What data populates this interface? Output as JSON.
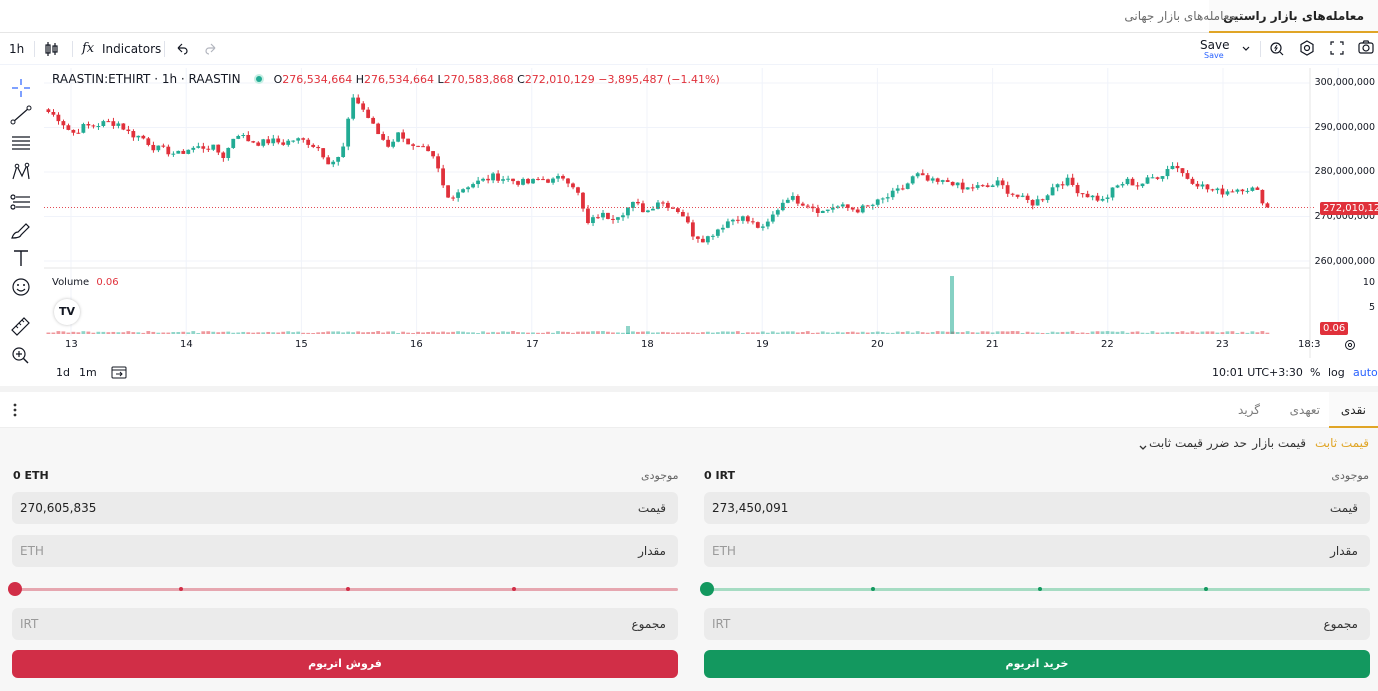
{
  "market_tabs": [
    {
      "label": "معامله‌های بازار راستین",
      "active": true
    },
    {
      "label": "معامله‌های بازار جهانی",
      "active": false
    }
  ],
  "toolbar": {
    "interval": "1h",
    "indicators_label": "Indicators",
    "save_label": "Save",
    "save_sub": "Save"
  },
  "legend": {
    "symbol": "RAASTIN:ETHIRT · 1h · RAASTIN",
    "o_key": "O",
    "o_val": "276,534,664",
    "h_key": "H",
    "h_val": "276,534,664",
    "l_key": "L",
    "l_val": "270,583,868",
    "c_key": "C",
    "c_val": "272,010,129",
    "change": "−3,895,487 (−1.41%)"
  },
  "volume_legend": {
    "label": "Volume",
    "value": "0.06"
  },
  "price_axis": [
    "300,000,000",
    "290,000,000",
    "280,000,000",
    "270,000,000",
    "260,000,000"
  ],
  "volume_axis": [
    "10",
    "5"
  ],
  "current_price_tag": "272,010,129",
  "volume_tag": "0.06",
  "time_axis": [
    "13",
    "14",
    "15",
    "16",
    "17",
    "18",
    "19",
    "20",
    "21",
    "22",
    "23",
    "18:3"
  ],
  "chart_bottom": {
    "range_1d": "1d",
    "range_1m": "1m",
    "clock": "10:01 UTC+3:30",
    "percent": "%",
    "log": "log",
    "auto": "auto"
  },
  "order_tabs": [
    {
      "label": "نقدی",
      "active": true
    },
    {
      "label": "تعهدی",
      "active": false
    },
    {
      "label": "گرید",
      "active": false
    }
  ],
  "order_types": {
    "limit": "قیمت ثابت",
    "market": "قیمت بازار",
    "stop_limit": "حد ضرر قیمت ثابت"
  },
  "buy": {
    "balance_label": "موجودی",
    "balance_value": "0 IRT",
    "price_label": "قیمت",
    "price_value": "273,450,091",
    "amount_label": "مقدار",
    "amount_placeholder": "ETH",
    "total_label": "مجموع",
    "total_placeholder": "IRT",
    "button_label": "خرید اتریوم"
  },
  "sell": {
    "balance_label": "موجودی",
    "balance_value": "0 ETH",
    "price_label": "قیمت",
    "price_value": "270,605,835",
    "amount_label": "مقدار",
    "amount_placeholder": "ETH",
    "total_label": "مجموع",
    "total_placeholder": "IRT",
    "button_label": "فروش اتریوم"
  },
  "colors": {
    "up": "#22ab94",
    "down": "#e0313b",
    "buy_button": "#13985f",
    "sell_button": "#d12e47",
    "accent": "#e0a526"
  },
  "chart_data": {
    "type": "candlestick",
    "title": "RAASTIN:ETHIRT · 1h · RAASTIN",
    "x_ticks": [
      "13",
      "14",
      "15",
      "16",
      "17",
      "18",
      "19",
      "20",
      "21",
      "22",
      "23",
      "18:3"
    ],
    "ylim": [
      258000000,
      302000000
    ],
    "y_ticks": [
      300000000,
      290000000,
      280000000,
      270000000,
      260000000
    ],
    "close_series": [
      [
        0,
        293.5
      ],
      [
        6,
        291.8
      ],
      [
        12,
        288.6
      ],
      [
        18,
        290.2
      ],
      [
        24,
        290.5
      ],
      [
        30,
        291.2
      ],
      [
        36,
        290.9
      ],
      [
        42,
        288.5
      ],
      [
        48,
        287.8
      ],
      [
        54,
        285.5
      ],
      [
        60,
        284.8
      ],
      [
        66,
        283.9
      ],
      [
        72,
        285.2
      ],
      [
        78,
        285.6
      ],
      [
        84,
        285.5
      ],
      [
        90,
        283.4
      ],
      [
        96,
        289.0
      ],
      [
        102,
        287.2
      ],
      [
        108,
        286.5
      ],
      [
        114,
        287.0
      ],
      [
        120,
        286.5
      ],
      [
        126,
        287.3
      ],
      [
        132,
        286.9
      ],
      [
        138,
        285.5
      ],
      [
        144,
        282.0
      ],
      [
        150,
        283.5
      ],
      [
        156,
        297.0
      ],
      [
        162,
        293.5
      ],
      [
        168,
        289.0
      ],
      [
        174,
        286.0
      ],
      [
        180,
        289.0
      ],
      [
        186,
        285.5
      ],
      [
        192,
        285.0
      ],
      [
        198,
        282.5
      ],
      [
        204,
        274.0
      ],
      [
        210,
        275.8
      ],
      [
        216,
        277.3
      ],
      [
        222,
        278.0
      ],
      [
        228,
        279.0
      ],
      [
        234,
        278.5
      ],
      [
        240,
        277.8
      ],
      [
        246,
        277.5
      ],
      [
        252,
        278.5
      ],
      [
        258,
        278.0
      ],
      [
        264,
        279.0
      ],
      [
        270,
        276.5
      ],
      [
        276,
        268.2
      ],
      [
        282,
        270.5
      ],
      [
        288,
        269.8
      ],
      [
        294,
        271.0
      ],
      [
        300,
        273.0
      ],
      [
        306,
        271.0
      ],
      [
        312,
        273.5
      ],
      [
        318,
        272.5
      ],
      [
        324,
        271.0
      ],
      [
        330,
        266.0
      ],
      [
        336,
        264.8
      ],
      [
        342,
        267.0
      ],
      [
        348,
        269.0
      ],
      [
        354,
        270.0
      ],
      [
        360,
        268.5
      ],
      [
        366,
        267.0
      ],
      [
        372,
        271.0
      ],
      [
        378,
        274.5
      ],
      [
        384,
        273.5
      ],
      [
        390,
        272.5
      ],
      [
        396,
        271.0
      ],
      [
        402,
        272.3
      ],
      [
        408,
        272.0
      ],
      [
        414,
        271.5
      ],
      [
        420,
        272.2
      ],
      [
        426,
        273.5
      ],
      [
        432,
        275.0
      ],
      [
        438,
        276.5
      ],
      [
        444,
        279.5
      ],
      [
        450,
        278.0
      ],
      [
        456,
        277.5
      ],
      [
        462,
        278.0
      ],
      [
        468,
        276.0
      ],
      [
        474,
        276.7
      ],
      [
        480,
        276.5
      ],
      [
        486,
        277.5
      ],
      [
        492,
        275.5
      ],
      [
        498,
        274.0
      ],
      [
        504,
        273.0
      ],
      [
        510,
        274.5
      ],
      [
        516,
        277.5
      ],
      [
        522,
        278.0
      ],
      [
        528,
        275.5
      ],
      [
        534,
        274.5
      ],
      [
        540,
        273.5
      ],
      [
        546,
        276.5
      ],
      [
        552,
        278.0
      ],
      [
        558,
        277.0
      ],
      [
        564,
        278.5
      ],
      [
        570,
        279.5
      ],
      [
        576,
        282.0
      ],
      [
        582,
        279.0
      ],
      [
        588,
        277.5
      ],
      [
        594,
        276.0
      ],
      [
        600,
        275.5
      ],
      [
        606,
        276.0
      ],
      [
        612,
        276.5
      ],
      [
        618,
        276.0
      ],
      [
        624,
        272.0
      ]
    ]
  }
}
